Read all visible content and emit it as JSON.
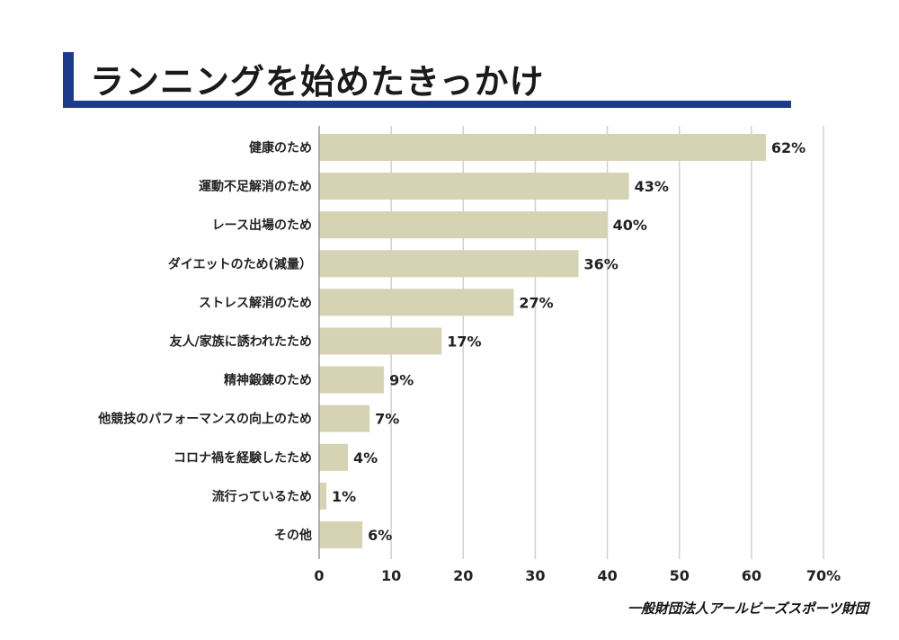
{
  "title": "ランニングを始めたきっかけ",
  "footer": "一般財団法人アールビーズスポーツ財団",
  "colors": {
    "bar": "#d6d2b4",
    "accent": "#1e3a8a",
    "grid": "#d0d0d0"
  },
  "chart_data": {
    "type": "bar",
    "orientation": "horizontal",
    "categories": [
      "健康のため",
      "運動不足解消のため",
      "レース出場のため",
      "ダイエットのため(減量）",
      "ストレス解消のため",
      "友人/家族に誘われたため",
      "精神鍛錬のため",
      "他競技のパフォーマンスの向上のため",
      "コロナ禍を経験したため",
      "流行っているため",
      "その他"
    ],
    "values": [
      62,
      43,
      40,
      36,
      27,
      17,
      9,
      7,
      4,
      1,
      6
    ],
    "value_labels": [
      "62%",
      "43%",
      "40%",
      "36%",
      "27%",
      "17%",
      "9%",
      "7%",
      "4%",
      "1%",
      "6%"
    ],
    "xticks": [
      "0",
      "10",
      "20",
      "30",
      "40",
      "50",
      "60",
      "70%"
    ],
    "xlim": [
      0,
      70
    ],
    "grid": true
  }
}
